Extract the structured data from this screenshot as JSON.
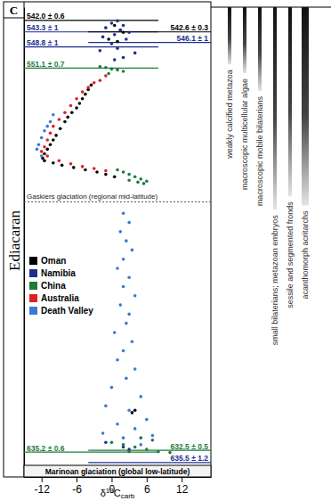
{
  "chart_data": {
    "type": "scatter",
    "top_period": "C",
    "period": "Ediacaran",
    "x_label": {
      "symbol": "δ",
      "sup": "13",
      "main": "C",
      "sub": "carb"
    },
    "xlim": [
      -15,
      17
    ],
    "xticks": [
      -12,
      -6,
      0,
      6,
      12
    ],
    "ylim": [
      0,
      100
    ],
    "tick_labels": "x",
    "legend": "left",
    "series": [
      {
        "name": "Oman",
        "color": "#000000",
        "x": [
          0.5,
          1.5,
          2,
          -0.5,
          1,
          -3.5,
          -4,
          -4.5,
          -5,
          -5.5,
          -6,
          -6.8,
          -7.5,
          -8,
          -8.8,
          -9.5,
          -10,
          -10.5,
          -11,
          -11.5,
          -11.8,
          -11.5,
          -10,
          -8.5,
          -6.5,
          -4.5,
          -2.5,
          -1,
          0.5,
          3.5,
          4
        ],
        "values": [
          96,
          95,
          94.5,
          93,
          92.5,
          83,
          82,
          81,
          80,
          79,
          78,
          77,
          76,
          75,
          73.5,
          72,
          71,
          70,
          69,
          68,
          67,
          66.5,
          66,
          65.5,
          65,
          64.5,
          64,
          63.5,
          63,
          11.5,
          12
        ]
      },
      {
        "name": "Namibia",
        "color": "#1f2f8f",
        "x": [
          1,
          0,
          2,
          -1,
          1.5,
          3,
          0.5,
          -1.5,
          2.5,
          0,
          1,
          -2,
          4,
          2,
          0.5,
          2,
          3,
          -1
        ],
        "values": [
          97,
          96.5,
          96,
          95.5,
          95,
          94.5,
          94,
          93.5,
          93,
          92,
          91,
          90.5,
          90,
          89,
          88.5,
          4,
          3.5,
          5
        ]
      },
      {
        "name": "China",
        "color": "#1e7b3c",
        "x": [
          -2,
          -1,
          0,
          1,
          2,
          -0.5,
          1,
          2,
          3,
          4,
          5,
          6,
          3,
          4.5,
          5.5,
          0,
          2,
          4,
          6,
          8,
          10,
          7,
          5,
          3
        ],
        "values": [
          87,
          86.8,
          86.5,
          86.3,
          86,
          85.5,
          64.5,
          64,
          63.5,
          63,
          62.5,
          62,
          62.2,
          61.8,
          61.5,
          5,
          4.5,
          4,
          3.5,
          3,
          2.8,
          5.5,
          6,
          3
        ]
      },
      {
        "name": "Australia",
        "color": "#e02020",
        "x": [
          -1,
          -2,
          -3,
          -4,
          -5,
          -6,
          -7,
          -8,
          -9,
          -10,
          -10.5,
          -11,
          -11.5,
          -12,
          -11,
          -9,
          -7,
          -5,
          -3,
          -1
        ],
        "values": [
          85,
          84,
          83.5,
          82.5,
          81.5,
          80,
          78.5,
          77,
          75.5,
          74,
          72.5,
          71,
          69.5,
          68.5,
          67.5,
          66.5,
          65.8,
          65.2,
          64.8,
          64.3
        ]
      },
      {
        "name": "Death Valley",
        "color": "#3a78d8",
        "x": [
          -12.5,
          -12,
          -11.5,
          -11,
          -12.8,
          -10.5,
          -10,
          -12,
          2,
          3,
          1.5,
          2.5,
          3.5,
          2,
          1,
          3,
          2,
          4,
          1.5,
          3,
          2.5,
          0.5,
          3.5,
          2,
          1,
          4,
          2.5,
          0,
          5,
          -1,
          3,
          6,
          1,
          4,
          -1.5,
          7,
          2,
          5
        ],
        "values": [
          70,
          71.5,
          73,
          74,
          69,
          75,
          76.5,
          67.5,
          55,
          53,
          51,
          49,
          47,
          45,
          43,
          41,
          39,
          37,
          35,
          33,
          31,
          29,
          27,
          25,
          23,
          21,
          19,
          17,
          15,
          13,
          12,
          10,
          9,
          8,
          7,
          6.5,
          6,
          4.5
        ]
      }
    ],
    "annotations": [
      {
        "label": "542.0 ± 0.6",
        "height": 97.1,
        "color": "#000000",
        "side": "left"
      },
      {
        "label": "543.3 ± 1",
        "height": 94.6,
        "color": "#1f2f8f",
        "side": "left"
      },
      {
        "label": "542.6 ± 0.3",
        "height": 94.6,
        "color": "#000000",
        "side": "right"
      },
      {
        "label": "546.1 ± 1",
        "height": 92.3,
        "color": "#1f2f8f",
        "side": "right"
      },
      {
        "label": "548.8 ± 1",
        "height": 91.3,
        "color": "#1f2f8f",
        "side": "left"
      },
      {
        "label": "551.1 ± 0.7",
        "height": 86.7,
        "color": "#1e7b3c",
        "side": "left"
      },
      {
        "label": "632.5 ± 0.5",
        "height": 3.3,
        "color": "#1e7b3c",
        "side": "right"
      },
      {
        "label": "635.2 ± 0.6",
        "height": 2.9,
        "color": "#1e7b3c",
        "side": "left"
      },
      {
        "label": "635.5 ± 1.2",
        "height": 0.6,
        "color": "#1f2f8f",
        "side": "right"
      }
    ],
    "glaciations": [
      {
        "label": "Gaskiers glaciation (regional mid-latitude)",
        "height": 57.5
      },
      {
        "label": "Marinoan glaciation (global low-latitude)",
        "height": 0
      }
    ],
    "taxa": [
      {
        "label": "weakly calcified metazoa",
        "top": 100,
        "bottom": 87.5
      },
      {
        "label": "macroscopic multicellular algae",
        "top": 100,
        "bottom": 85.6
      },
      {
        "label": "macroscopic mobile bilaterians",
        "top": 100,
        "bottom": 81.7
      },
      {
        "label": "small bilaterians; metazoan embryos",
        "top": 100,
        "bottom": 55.8
      },
      {
        "label": "sessile and segmented fronds",
        "top": 100,
        "bottom": 58.7
      },
      {
        "label": "acanthomorph acritarchs",
        "top": 100,
        "bottom": 56.7
      }
    ]
  }
}
